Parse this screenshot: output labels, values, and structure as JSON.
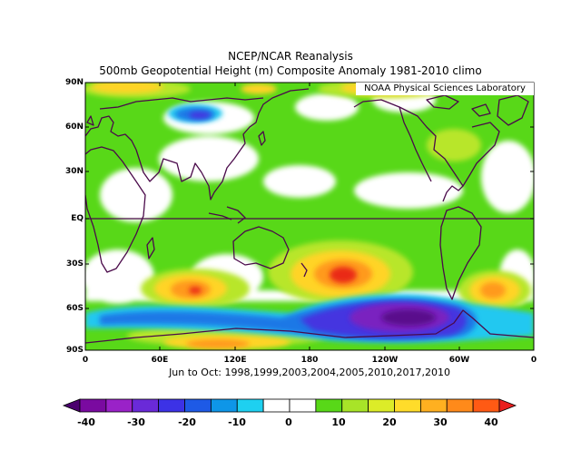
{
  "title": {
    "line1": "NCEP/NCAR Reanalysis",
    "line2": "500mb Geopotential Height (m) Composite Anomaly 1981-2010 climo"
  },
  "credit": "NOAA Physical Sciences Laboratory",
  "subtitle": "Jun to Oct: 1998,1999,2003,2004,2005,2010,2017,2010",
  "axes": {
    "lat_labels": [
      "90N",
      "60N",
      "30N",
      "EQ",
      "30S",
      "60S",
      "90S"
    ],
    "lon_labels": [
      "0",
      "60E",
      "120E",
      "180",
      "120W",
      "60W",
      "0"
    ]
  },
  "colorbar": {
    "labels": [
      "-40",
      "-30",
      "-20",
      "-10",
      "0",
      "10",
      "20",
      "30",
      "40"
    ],
    "colors": [
      "#4b006e",
      "#7a0aa0",
      "#9a22c8",
      "#6a2ad8",
      "#3c32e6",
      "#1e5ae6",
      "#0e96e8",
      "#1ed0f0",
      "#ffffff",
      "#ffffff",
      "#58d818",
      "#a8e428",
      "#dcec28",
      "#ffdc2a",
      "#ffb020",
      "#ff8a1a",
      "#ff5a14",
      "#ea1e1e"
    ]
  },
  "map_colors": {
    "neg_deep": "#5a0a8c",
    "neg_strong": "#7a22c0",
    "neg_mid": "#4434e0",
    "neg_light": "#1e78e6",
    "neg_faint": "#22c8f0",
    "pos_faint": "#58d818",
    "pos_light": "#b8e62a",
    "pos_mid": "#ffd428",
    "pos_strong": "#ff9a1e",
    "pos_peak": "#ea2a18",
    "coast": "#4a0a4a"
  }
}
